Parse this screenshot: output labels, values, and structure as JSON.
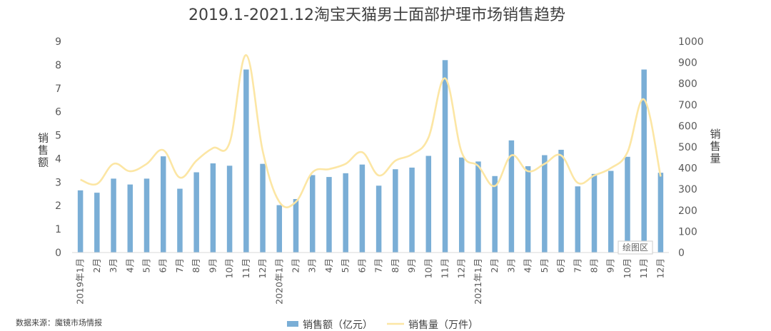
{
  "chart_data": {
    "type": "bar",
    "title": "2019.1-2021.12淘宝天猫男士面部护理市场销售趋势",
    "categories": [
      "2019年1月",
      "2月",
      "3月",
      "4月",
      "5月",
      "6月",
      "7月",
      "8月",
      "9月",
      "10月",
      "11月",
      "12月",
      "2020年1月",
      "2月",
      "3月",
      "4月",
      "5月",
      "6月",
      "7月",
      "8月",
      "9月",
      "10月",
      "11月",
      "12月",
      "2021年1月",
      "2月",
      "3月",
      "4月",
      "5月",
      "6月",
      "7月",
      "8月",
      "9月",
      "10月",
      "11月",
      "12月"
    ],
    "ylabel_left": "销售额",
    "ylabel_right": "销售量",
    "ylim_left": [
      0,
      9
    ],
    "ylim_right": [
      0,
      1000
    ],
    "yticks_left": [
      "0",
      "1",
      "2",
      "3",
      "4",
      "5",
      "6",
      "7",
      "8",
      "9"
    ],
    "yticks_right": [
      "0",
      "100",
      "200",
      "300",
      "400",
      "500",
      "600",
      "700",
      "800",
      "900",
      "1000"
    ],
    "grid": false,
    "legend_position": "bottom",
    "series": [
      {
        "name": "销售额（亿元）",
        "type": "bar",
        "axis": "left",
        "color": "#7AAED6",
        "values": [
          2.65,
          2.55,
          3.15,
          2.9,
          3.15,
          4.1,
          2.72,
          3.42,
          3.8,
          3.7,
          7.8,
          3.78,
          2.02,
          2.28,
          3.3,
          3.22,
          3.38,
          3.75,
          2.85,
          3.55,
          3.62,
          4.12,
          8.2,
          4.05,
          3.88,
          3.26,
          4.78,
          3.68,
          4.15,
          4.38,
          2.82,
          3.35,
          3.48,
          4.08,
          7.8,
          3.4
        ]
      },
      {
        "name": "销售量（万件）",
        "type": "line",
        "axis": "right",
        "color": "#FCE6A4",
        "values": [
          345,
          325,
          420,
          385,
          420,
          485,
          355,
          435,
          495,
          520,
          935,
          480,
          240,
          240,
          380,
          395,
          420,
          475,
          365,
          435,
          465,
          545,
          825,
          475,
          410,
          315,
          460,
          385,
          420,
          460,
          330,
          365,
          400,
          475,
          725,
          360
        ]
      }
    ]
  },
  "source": "数据来源：魔镜市场情报",
  "watermark": "绘图区"
}
